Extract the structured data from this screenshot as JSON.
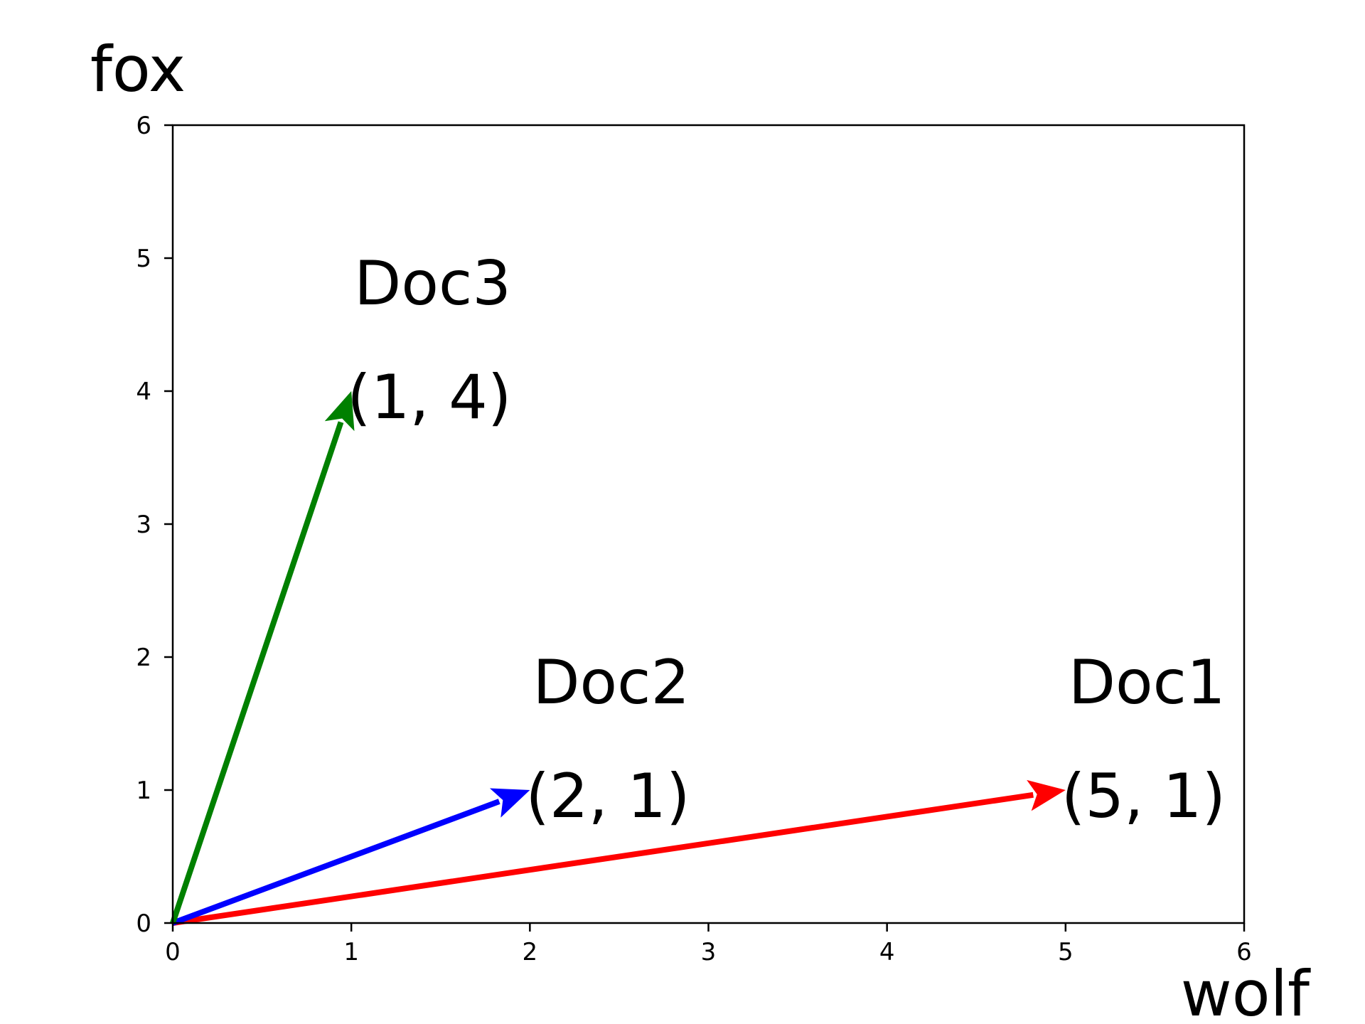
{
  "chart_data": {
    "type": "vector",
    "title": "",
    "xlabel": "wolf",
    "ylabel": "fox",
    "xlim": [
      0,
      6
    ],
    "ylim": [
      0,
      6
    ],
    "xticks": [
      "0",
      "1",
      "2",
      "3",
      "4",
      "5",
      "6"
    ],
    "yticks": [
      "0",
      "1",
      "2",
      "3",
      "4",
      "5",
      "6"
    ],
    "grid": false,
    "vectors": [
      {
        "name": "Doc1",
        "label": "(5, 1)",
        "x": 5,
        "y": 1,
        "color": "#ff0000"
      },
      {
        "name": "Doc2",
        "label": "(2, 1)",
        "x": 2,
        "y": 1,
        "color": "#0000ff"
      },
      {
        "name": "Doc3",
        "label": "(1, 4)",
        "x": 1,
        "y": 4,
        "color": "#008000"
      }
    ]
  }
}
